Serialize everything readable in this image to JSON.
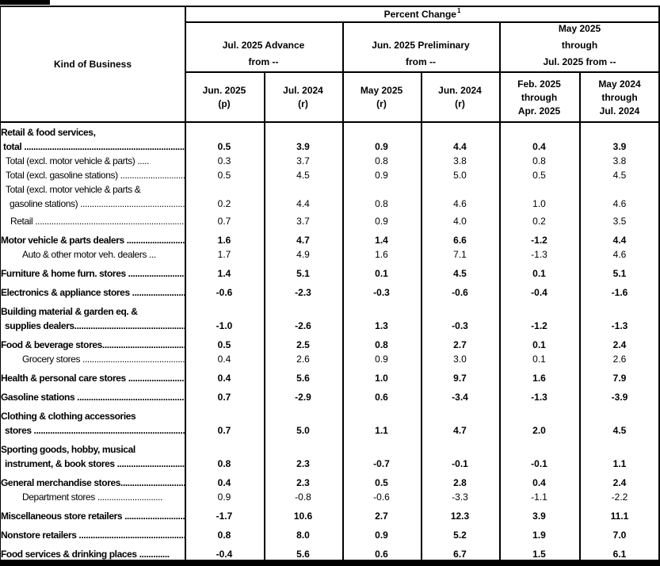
{
  "header": {
    "kind_of_business": "Kind of Business",
    "percent_change": "Percent Change",
    "percent_change_superscript": "1",
    "groups": [
      {
        "line1": "Jul. 2025 Advance",
        "line2": "from --"
      },
      {
        "line1": "Jun. 2025 Preliminary",
        "line2": "from --"
      },
      {
        "line1": "May 2025",
        "line2": "through",
        "line3": "Jul. 2025 from --"
      }
    ],
    "columns": [
      {
        "line1": "Jun. 2025",
        "line2": "(p)"
      },
      {
        "line1": "Jul. 2024",
        "line2": "(r)"
      },
      {
        "line1": "May 2025",
        "line2": "(r)"
      },
      {
        "line1": "Jun. 2024",
        "line2": "(r)"
      },
      {
        "line1": "Feb. 2025",
        "line2": "through",
        "line3": "Apr. 2025"
      },
      {
        "line1": "May 2024",
        "line2": "through",
        "line3": "Jul. 2024"
      }
    ]
  },
  "body": {
    "rows": [
      {
        "name": "retail-food-services-total",
        "bold": true,
        "margin_top": 0,
        "lines": [
          {
            "text": "Retail & food services,",
            "indent": 1
          },
          {
            "text": "total ................................................................................",
            "indent": 4
          }
        ],
        "values": [
          "0.5",
          "3.9",
          "0.9",
          "4.4",
          "0.4",
          "3.9"
        ]
      },
      {
        "name": "total-excl-motor-vehicle-parts",
        "bold": false,
        "margin_top": 0,
        "lines": [
          {
            "text": "Total (excl. motor vehicle & parts) .....",
            "indent": 7
          }
        ],
        "values": [
          "0.3",
          "3.7",
          "0.8",
          "3.8",
          "0.8",
          "3.8"
        ]
      },
      {
        "name": "total-excl-gasoline-stations",
        "bold": false,
        "margin_top": 0,
        "lines": [
          {
            "text": "Total (excl. gasoline stations) ................................................",
            "indent": 7
          }
        ],
        "values": [
          "0.5",
          "4.5",
          "0.9",
          "5.0",
          "0.5",
          "4.5"
        ]
      },
      {
        "name": "total-excl-mv-parts-gasoline-stations",
        "bold": false,
        "margin_top": 0,
        "lines": [
          {
            "text": "Total (excl. motor vehicle & parts &",
            "indent": 7
          },
          {
            "text": "gasoline stations) ..................................................................",
            "indent": 12
          }
        ],
        "values": [
          "0.2",
          "4.4",
          "0.8",
          "4.6",
          "1.0",
          "4.6"
        ]
      },
      {
        "name": "retail",
        "bold": false,
        "margin_top": 4,
        "lines": [
          {
            "text": "Retail ........................................................................................",
            "indent": 13
          }
        ],
        "values": [
          "0.7",
          "3.7",
          "0.9",
          "4.0",
          "0.2",
          "3.5"
        ]
      },
      {
        "name": "motor-vehicle-parts-dealers",
        "bold": true,
        "margin_top": 6,
        "lines": [
          {
            "text": "Motor vehicle & parts dealers ...................................",
            "indent": 1
          }
        ],
        "values": [
          "1.6",
          "4.7",
          "1.4",
          "6.6",
          "-1.2",
          "4.4"
        ]
      },
      {
        "name": "auto-other-motor-veh-dealers",
        "bold": false,
        "margin_top": 0,
        "lines": [
          {
            "text": "Auto & other motor veh. dealers ...",
            "indent": 28
          }
        ],
        "values": [
          "1.7",
          "4.9",
          "1.6",
          "7.1",
          "-1.3",
          "4.6"
        ]
      },
      {
        "name": "furniture-home-furn-stores",
        "bold": true,
        "margin_top": 6,
        "lines": [
          {
            "text": "Furniture & home furn. stores ...................................",
            "indent": 1
          }
        ],
        "values": [
          "1.4",
          "5.1",
          "0.1",
          "4.5",
          "0.1",
          "5.1"
        ]
      },
      {
        "name": "electronics-appliance-stores",
        "bold": true,
        "margin_top": 6,
        "lines": [
          {
            "text": "Electronics & appliance stores ..................................",
            "indent": 1
          }
        ],
        "values": [
          "-0.6",
          "-2.3",
          "-0.3",
          "-0.6",
          "-0.4",
          "-1.6"
        ]
      },
      {
        "name": "building-material-garden-eq-supplies-dealers",
        "bold": true,
        "margin_top": 6,
        "lines": [
          {
            "text": "Building material & garden eq. &",
            "indent": 1
          },
          {
            "text": "supplies dealers....................................................................",
            "indent": 6
          }
        ],
        "values": [
          "-1.0",
          "-2.6",
          "1.3",
          "-0.3",
          "-1.2",
          "-1.3"
        ]
      },
      {
        "name": "food-beverage-stores",
        "bold": true,
        "margin_top": 6,
        "lines": [
          {
            "text": "Food & beverage stores..........................................................",
            "indent": 1
          }
        ],
        "values": [
          "0.5",
          "2.5",
          "0.8",
          "2.7",
          "0.1",
          "2.4"
        ]
      },
      {
        "name": "grocery-stores",
        "bold": false,
        "margin_top": 0,
        "lines": [
          {
            "text": "Grocery stores .....................................................",
            "indent": 28
          }
        ],
        "values": [
          "0.4",
          "2.6",
          "0.9",
          "3.0",
          "0.1",
          "2.6"
        ]
      },
      {
        "name": "health-personal-care-stores",
        "bold": true,
        "margin_top": 6,
        "lines": [
          {
            "text": "Health & personal care stores ....................................",
            "indent": 1
          }
        ],
        "values": [
          "0.4",
          "5.6",
          "1.0",
          "9.7",
          "1.6",
          "7.9"
        ]
      },
      {
        "name": "gasoline-stations",
        "bold": true,
        "margin_top": 6,
        "lines": [
          {
            "text": "Gasoline stations .........................................................",
            "indent": 1
          }
        ],
        "values": [
          "0.7",
          "-2.9",
          "0.6",
          "-3.4",
          "-1.3",
          "-3.9"
        ]
      },
      {
        "name": "clothing-clothing-accessories-stores",
        "bold": true,
        "margin_top": 6,
        "lines": [
          {
            "text": "Clothing & clothing accessories",
            "indent": 1
          },
          {
            "text": "stores ......................................................................................",
            "indent": 6
          }
        ],
        "values": [
          "0.7",
          "5.0",
          "1.1",
          "4.7",
          "2.0",
          "4.5"
        ]
      },
      {
        "name": "sporting-goods-hobby-musical-instrument-book-stores",
        "bold": true,
        "margin_top": 6,
        "lines": [
          {
            "text": "Sporting goods, hobby, musical",
            "indent": 1
          },
          {
            "text": "instrument, & book stores .....................................",
            "indent": 6
          }
        ],
        "values": [
          "0.8",
          "2.3",
          "-0.7",
          "-0.1",
          "-0.1",
          "1.1"
        ]
      },
      {
        "name": "general-merchandise-stores",
        "bold": true,
        "margin_top": 6,
        "lines": [
          {
            "text": "General merchandise stores....................................................",
            "indent": 1
          }
        ],
        "values": [
          "0.4",
          "2.3",
          "0.5",
          "2.8",
          "0.4",
          "2.4"
        ]
      },
      {
        "name": "department-stores",
        "bold": false,
        "margin_top": 0,
        "lines": [
          {
            "text": "Department stores ............................",
            "indent": 28
          }
        ],
        "values": [
          "0.9",
          "-0.8",
          "-0.6",
          "-3.3",
          "-1.1",
          "-2.2"
        ]
      },
      {
        "name": "miscellaneous-store-retailers",
        "bold": true,
        "margin_top": 6,
        "lines": [
          {
            "text": "Miscellaneous store retailers ..................................",
            "indent": 1
          }
        ],
        "values": [
          "-1.7",
          "10.6",
          "2.7",
          "12.3",
          "3.9",
          "11.1"
        ]
      },
      {
        "name": "nonstore-retailers",
        "bold": true,
        "margin_top": 6,
        "lines": [
          {
            "text": "Nonstore retailers ....................................................",
            "indent": 1
          }
        ],
        "values": [
          "0.8",
          "8.0",
          "0.9",
          "5.2",
          "1.9",
          "7.0"
        ]
      },
      {
        "name": "food-services-drinking-places",
        "bold": true,
        "margin_top": 6,
        "lines": [
          {
            "text": "Food services & drinking places .............",
            "indent": 1
          }
        ],
        "values": [
          "-0.4",
          "5.6",
          "0.6",
          "6.7",
          "1.5",
          "6.1"
        ]
      }
    ]
  }
}
